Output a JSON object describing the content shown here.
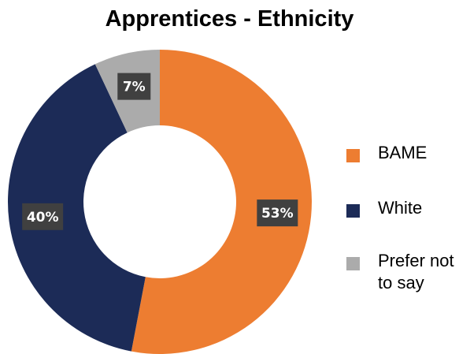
{
  "chart_data": {
    "type": "pie",
    "title": "Apprentices - Ethnicity",
    "categories": [
      "BAME",
      "White",
      "Prefer not to say"
    ],
    "values": [
      53,
      40,
      7
    ],
    "data_labels": [
      "53%",
      "40%",
      "7%"
    ],
    "unit": "%",
    "colors": [
      "#ED7D31",
      "#1C2B57",
      "#ABABAB"
    ],
    "style": "donut",
    "legend_position": "right"
  }
}
